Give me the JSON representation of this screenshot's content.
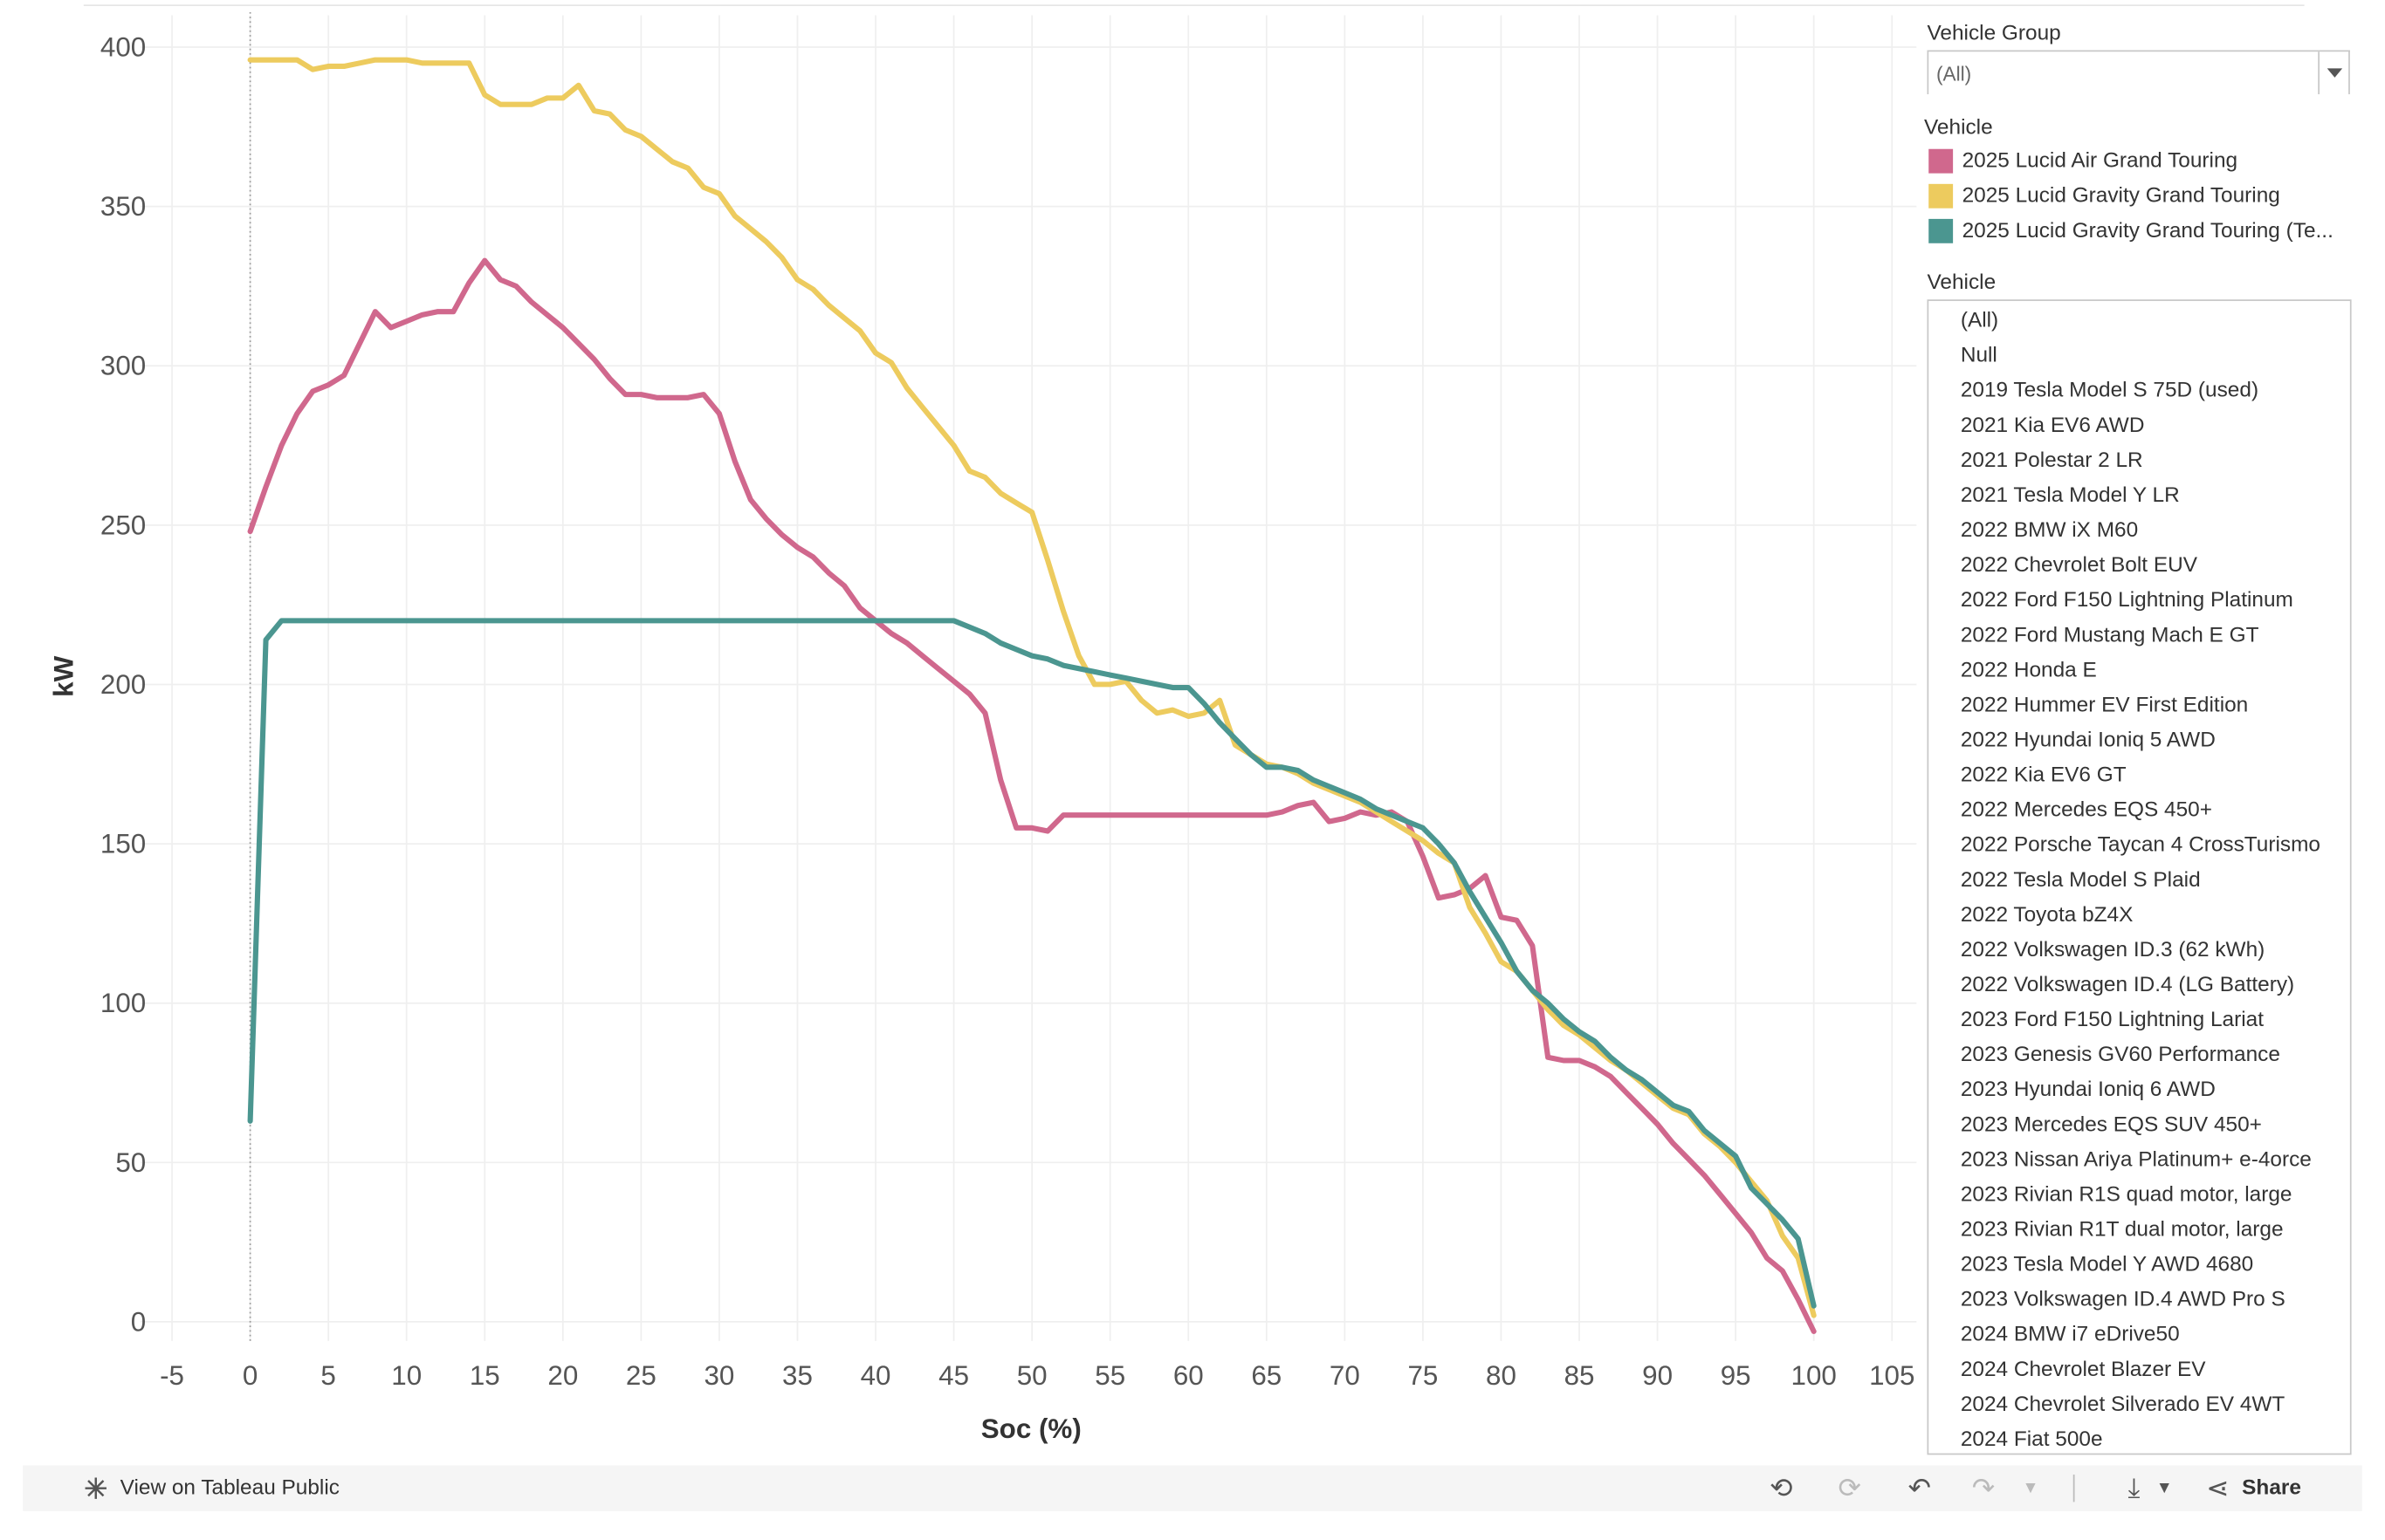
{
  "chart_data": {
    "type": "line",
    "title": "",
    "xlabel": "Soc (%)",
    "ylabel": "kW",
    "xlim": [
      -7,
      107
    ],
    "ylim": [
      -6,
      410
    ],
    "xticks": [
      -5,
      0,
      5,
      10,
      15,
      20,
      25,
      30,
      35,
      40,
      45,
      50,
      55,
      60,
      65,
      70,
      75,
      80,
      85,
      90,
      95,
      100,
      105
    ],
    "yticks": [
      0,
      50,
      100,
      150,
      200,
      250,
      300,
      350,
      400
    ],
    "grid": true,
    "legend_position": "right",
    "series": [
      {
        "name": "2025 Lucid Air Grand Touring",
        "color": "#d0688d",
        "points": [
          [
            0,
            248
          ],
          [
            1,
            262
          ],
          [
            2,
            275
          ],
          [
            3,
            285
          ],
          [
            4,
            292
          ],
          [
            5,
            294
          ],
          [
            6,
            297
          ],
          [
            7,
            307
          ],
          [
            8,
            317
          ],
          [
            9,
            312
          ],
          [
            10,
            314
          ],
          [
            11,
            316
          ],
          [
            12,
            317
          ],
          [
            13,
            317
          ],
          [
            14,
            326
          ],
          [
            15,
            333
          ],
          [
            16,
            327
          ],
          [
            17,
            325
          ],
          [
            18,
            320
          ],
          [
            19,
            316
          ],
          [
            20,
            312
          ],
          [
            21,
            307
          ],
          [
            22,
            302
          ],
          [
            23,
            296
          ],
          [
            24,
            291
          ],
          [
            25,
            291
          ],
          [
            26,
            290
          ],
          [
            27,
            290
          ],
          [
            28,
            290
          ],
          [
            29,
            291
          ],
          [
            30,
            285
          ],
          [
            31,
            270
          ],
          [
            32,
            258
          ],
          [
            33,
            252
          ],
          [
            34,
            247
          ],
          [
            35,
            243
          ],
          [
            36,
            240
          ],
          [
            37,
            235
          ],
          [
            38,
            231
          ],
          [
            39,
            224
          ],
          [
            40,
            220
          ],
          [
            41,
            216
          ],
          [
            42,
            213
          ],
          [
            43,
            209
          ],
          [
            44,
            205
          ],
          [
            45,
            201
          ],
          [
            46,
            197
          ],
          [
            47,
            191
          ],
          [
            48,
            170
          ],
          [
            49,
            155
          ],
          [
            50,
            155
          ],
          [
            51,
            154
          ],
          [
            52,
            159
          ],
          [
            53,
            159
          ],
          [
            54,
            159
          ],
          [
            55,
            159
          ],
          [
            56,
            159
          ],
          [
            57,
            159
          ],
          [
            58,
            159
          ],
          [
            59,
            159
          ],
          [
            60,
            159
          ],
          [
            61,
            159
          ],
          [
            62,
            159
          ],
          [
            63,
            159
          ],
          [
            64,
            159
          ],
          [
            65,
            159
          ],
          [
            66,
            160
          ],
          [
            67,
            162
          ],
          [
            68,
            163
          ],
          [
            69,
            157
          ],
          [
            70,
            158
          ],
          [
            71,
            160
          ],
          [
            72,
            159
          ],
          [
            73,
            160
          ],
          [
            74,
            157
          ],
          [
            75,
            146
          ],
          [
            76,
            133
          ],
          [
            77,
            134
          ],
          [
            78,
            136
          ],
          [
            79,
            140
          ],
          [
            80,
            127
          ],
          [
            81,
            126
          ],
          [
            82,
            118
          ],
          [
            83,
            83
          ],
          [
            84,
            82
          ],
          [
            85,
            82
          ],
          [
            86,
            80
          ],
          [
            87,
            77
          ],
          [
            88,
            72
          ],
          [
            89,
            67
          ],
          [
            90,
            62
          ],
          [
            91,
            56
          ],
          [
            92,
            51
          ],
          [
            93,
            46
          ],
          [
            94,
            40
          ],
          [
            95,
            34
          ],
          [
            96,
            28
          ],
          [
            97,
            20
          ],
          [
            98,
            16
          ],
          [
            99,
            7
          ],
          [
            100,
            -3
          ]
        ]
      },
      {
        "name": "2025 Lucid Gravity Grand Touring",
        "color": "#edcb5e",
        "points": [
          [
            0,
            396
          ],
          [
            1,
            396
          ],
          [
            2,
            396
          ],
          [
            3,
            396
          ],
          [
            4,
            393
          ],
          [
            5,
            394
          ],
          [
            6,
            394
          ],
          [
            7,
            395
          ],
          [
            8,
            396
          ],
          [
            9,
            396
          ],
          [
            10,
            396
          ],
          [
            11,
            395
          ],
          [
            12,
            395
          ],
          [
            13,
            395
          ],
          [
            14,
            395
          ],
          [
            15,
            385
          ],
          [
            16,
            382
          ],
          [
            17,
            382
          ],
          [
            18,
            382
          ],
          [
            19,
            384
          ],
          [
            20,
            384
          ],
          [
            21,
            388
          ],
          [
            22,
            380
          ],
          [
            23,
            379
          ],
          [
            24,
            374
          ],
          [
            25,
            372
          ],
          [
            26,
            368
          ],
          [
            27,
            364
          ],
          [
            28,
            362
          ],
          [
            29,
            356
          ],
          [
            30,
            354
          ],
          [
            31,
            347
          ],
          [
            32,
            343
          ],
          [
            33,
            339
          ],
          [
            34,
            334
          ],
          [
            35,
            327
          ],
          [
            36,
            324
          ],
          [
            37,
            319
          ],
          [
            38,
            315
          ],
          [
            39,
            311
          ],
          [
            40,
            304
          ],
          [
            41,
            301
          ],
          [
            42,
            293
          ],
          [
            43,
            287
          ],
          [
            44,
            281
          ],
          [
            45,
            275
          ],
          [
            46,
            267
          ],
          [
            47,
            265
          ],
          [
            48,
            260
          ],
          [
            49,
            257
          ],
          [
            50,
            254
          ],
          [
            51,
            239
          ],
          [
            52,
            223
          ],
          [
            53,
            209
          ],
          [
            54,
            200
          ],
          [
            55,
            200
          ],
          [
            56,
            201
          ],
          [
            57,
            195
          ],
          [
            58,
            191
          ],
          [
            59,
            192
          ],
          [
            60,
            190
          ],
          [
            61,
            191
          ],
          [
            62,
            195
          ],
          [
            63,
            181
          ],
          [
            64,
            178
          ],
          [
            65,
            175
          ],
          [
            66,
            174
          ],
          [
            67,
            172
          ],
          [
            68,
            169
          ],
          [
            69,
            167
          ],
          [
            70,
            165
          ],
          [
            71,
            163
          ],
          [
            72,
            160
          ],
          [
            73,
            157
          ],
          [
            74,
            154
          ],
          [
            75,
            151
          ],
          [
            76,
            147
          ],
          [
            77,
            144
          ],
          [
            78,
            130
          ],
          [
            79,
            122
          ],
          [
            80,
            113
          ],
          [
            81,
            110
          ],
          [
            82,
            104
          ],
          [
            83,
            98
          ],
          [
            84,
            93
          ],
          [
            85,
            90
          ],
          [
            86,
            86
          ],
          [
            87,
            82
          ],
          [
            88,
            79
          ],
          [
            89,
            75
          ],
          [
            90,
            71
          ],
          [
            91,
            67
          ],
          [
            92,
            65
          ],
          [
            93,
            59
          ],
          [
            94,
            55
          ],
          [
            95,
            50
          ],
          [
            96,
            44
          ],
          [
            97,
            38
          ],
          [
            98,
            27
          ],
          [
            99,
            20
          ],
          [
            100,
            2
          ]
        ]
      },
      {
        "name": "2025 Lucid Gravity Grand Touring (Te...",
        "color": "#4b9690",
        "points": [
          [
            0,
            63
          ],
          [
            1,
            214
          ],
          [
            2,
            220
          ],
          [
            3,
            220
          ],
          [
            10,
            220
          ],
          [
            20,
            220
          ],
          [
            30,
            220
          ],
          [
            40,
            220
          ],
          [
            44,
            220
          ],
          [
            45,
            220
          ],
          [
            46,
            218
          ],
          [
            47,
            216
          ],
          [
            48,
            213
          ],
          [
            49,
            211
          ],
          [
            50,
            209
          ],
          [
            51,
            208
          ],
          [
            52,
            206
          ],
          [
            53,
            205
          ],
          [
            54,
            204
          ],
          [
            55,
            203
          ],
          [
            56,
            202
          ],
          [
            57,
            201
          ],
          [
            58,
            200
          ],
          [
            59,
            199
          ],
          [
            60,
            199
          ],
          [
            61,
            194
          ],
          [
            62,
            188
          ],
          [
            63,
            183
          ],
          [
            64,
            178
          ],
          [
            65,
            174
          ],
          [
            66,
            174
          ],
          [
            67,
            173
          ],
          [
            68,
            170
          ],
          [
            69,
            168
          ],
          [
            70,
            166
          ],
          [
            71,
            164
          ],
          [
            72,
            161
          ],
          [
            73,
            159
          ],
          [
            74,
            157
          ],
          [
            75,
            155
          ],
          [
            76,
            150
          ],
          [
            77,
            144
          ],
          [
            78,
            135
          ],
          [
            79,
            127
          ],
          [
            80,
            119
          ],
          [
            81,
            110
          ],
          [
            82,
            104
          ],
          [
            83,
            100
          ],
          [
            84,
            95
          ],
          [
            85,
            91
          ],
          [
            86,
            88
          ],
          [
            87,
            83
          ],
          [
            88,
            79
          ],
          [
            89,
            76
          ],
          [
            90,
            72
          ],
          [
            91,
            68
          ],
          [
            92,
            66
          ],
          [
            93,
            60
          ],
          [
            94,
            56
          ],
          [
            95,
            52
          ],
          [
            96,
            42
          ],
          [
            97,
            37
          ],
          [
            98,
            32
          ],
          [
            99,
            26
          ],
          [
            100,
            5
          ]
        ]
      }
    ]
  },
  "filters": {
    "vehicle_group_title": "Vehicle Group",
    "vehicle_group_value": "(All)",
    "legend_title": "Vehicle",
    "legend": [
      {
        "label": "2025 Lucid Air Grand Touring",
        "color": "#d0688d"
      },
      {
        "label": "2025 Lucid Gravity Grand Touring",
        "color": "#edcb5e"
      },
      {
        "label": "2025 Lucid Gravity Grand Touring (Te...",
        "color": "#4b9690"
      }
    ],
    "vehicle_list_title": "Vehicle",
    "vehicle_list": [
      "(All)",
      "Null",
      "2019 Tesla Model S 75D (used)",
      "2021 Kia EV6 AWD",
      "2021 Polestar 2 LR",
      "2021 Tesla Model Y LR",
      "2022 BMW iX M60",
      "2022 Chevrolet Bolt EUV",
      "2022 Ford F150 Lightning Platinum",
      "2022 Ford Mustang Mach E GT",
      "2022 Honda E",
      "2022 Hummer EV First Edition",
      "2022 Hyundai Ioniq 5 AWD",
      "2022 Kia EV6 GT",
      "2022 Mercedes EQS 450+",
      "2022 Porsche Taycan 4 CrossTurismo",
      "2022 Tesla Model S Plaid",
      "2022 Toyota bZ4X",
      "2022 Volkswagen ID.3 (62 kWh)",
      "2022 Volkswagen ID.4 (LG Battery)",
      "2023 Ford F150 Lightning Lariat",
      "2023 Genesis GV60 Performance",
      "2023 Hyundai Ioniq 6 AWD",
      "2023 Mercedes EQS SUV 450+",
      "2023 Nissan Ariya Platinum+ e-4orce",
      "2023 Rivian R1S quad motor, large",
      "2023 Rivian R1T dual motor, large",
      "2023 Tesla Model Y AWD 4680",
      "2023 Volkswagen ID.4 AWD Pro S",
      "2024 BMW i7 eDrive50",
      "2024 Chevrolet Blazer EV",
      "2024 Chevrolet Silverado EV 4WT",
      "2024 Fiat 500e"
    ]
  },
  "footer": {
    "view_label": "View on Tableau Public",
    "share_label": "Share",
    "icons": [
      "tableau-logo-icon",
      "undo-icon",
      "redo-icon",
      "revert-icon",
      "refresh-icon",
      "download-icon",
      "share-icon"
    ]
  }
}
